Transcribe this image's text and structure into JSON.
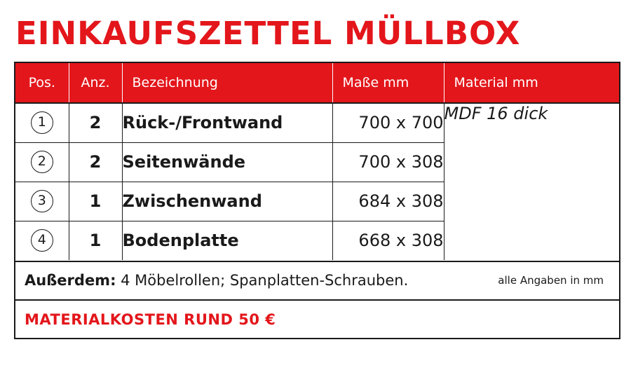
{
  "title": "EINKAUFSZETTEL MÜLLBOX",
  "colors": {
    "accent": "#e3161b",
    "text": "#1a1a1a",
    "header_text": "#ffffff",
    "background": "#ffffff"
  },
  "table": {
    "headers": {
      "pos": "Pos.",
      "anz": "Anz.",
      "name": "Bezeichnung",
      "size": "Maße mm",
      "material": "Material mm"
    },
    "rows": [
      {
        "pos": "1",
        "anz": "2",
        "name": "Rück-/Frontwand",
        "size": "700 x 700"
      },
      {
        "pos": "2",
        "anz": "2",
        "name": "Seitenwände",
        "size": "700 x 308"
      },
      {
        "pos": "3",
        "anz": "1",
        "name": "Zwischenwand",
        "size": "684 x 308"
      },
      {
        "pos": "4",
        "anz": "1",
        "name": "Bodenplatte",
        "size": "668 x 308"
      }
    ],
    "material": "MDF 16 dick"
  },
  "extras": {
    "label": "Außerdem:",
    "text": " 4 Möbelrollen; Spanplatten-Schrauben.",
    "note": "alle Angaben in mm"
  },
  "cost": "MATERIALKOSTEN RUND 50 €"
}
